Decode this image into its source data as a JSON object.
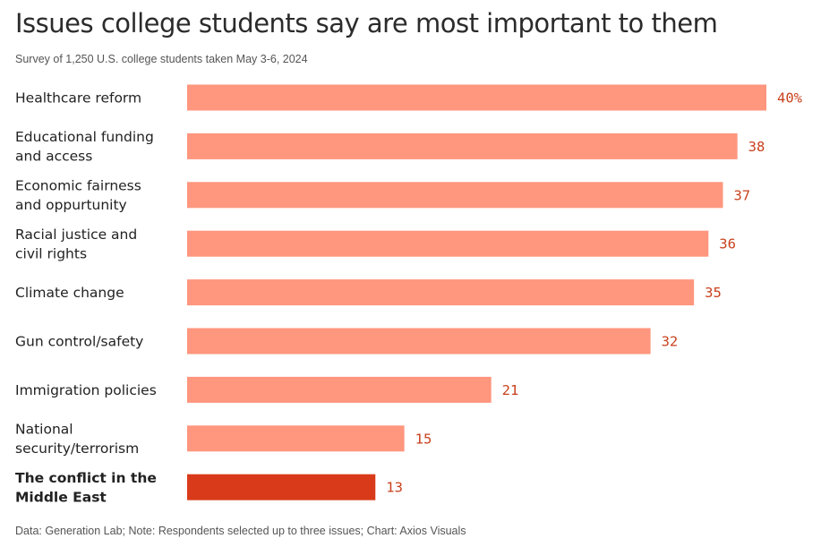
{
  "title": "Issues college students say are most important to them",
  "subtitle": "Survey of 1,250 U.S. college students taken May 3-6, 2024",
  "footer": "Data: Generation Lab; Note: Respondents selected up to three issues; Chart: Axios Visuals",
  "chart_data": {
    "type": "bar",
    "orientation": "horizontal",
    "categories": [
      [
        "Healthcare reform"
      ],
      [
        "Educational funding",
        "and access"
      ],
      [
        "Economic fairness",
        "and oppurtunity"
      ],
      [
        "Racial justice and",
        "civil rights"
      ],
      [
        "Climate change"
      ],
      [
        "Gun control/safety"
      ],
      [
        "Immigration policies"
      ],
      [
        "National",
        "security/terrorism"
      ],
      [
        "The conflict in the",
        "Middle East"
      ]
    ],
    "values": [
      40,
      38,
      37,
      36,
      35,
      32,
      21,
      15,
      13
    ],
    "value_labels": [
      "40%",
      "38",
      "37",
      "36",
      "35",
      "32",
      "21",
      "15",
      "13"
    ],
    "unit": "%",
    "xlim": [
      0,
      40
    ],
    "highlight_index": 8,
    "colors": {
      "bar": "#ff967e",
      "highlight": "#d93b1a",
      "value_text": "#c9401c"
    },
    "grid": false,
    "legend": "none"
  }
}
